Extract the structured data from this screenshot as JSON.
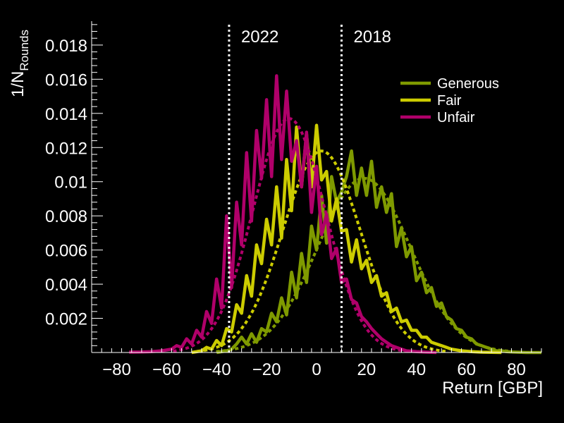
{
  "chart_data": {
    "type": "line",
    "title": "",
    "xlabel": "Return [GBP]",
    "ylabel": {
      "main": "1/N",
      "sub": "Rounds"
    },
    "xlim": [
      -90,
      90
    ],
    "ylim": [
      0,
      0.0194
    ],
    "x_ticks": [
      -80,
      -60,
      -40,
      -20,
      0,
      20,
      40,
      60,
      80
    ],
    "x_tick_labels": [
      "−80",
      "−60",
      "−40",
      "−20",
      "0",
      "20",
      "40",
      "60",
      "80"
    ],
    "y_ticks": [
      0.002,
      0.004,
      0.006,
      0.008,
      0.01,
      0.012,
      0.014,
      0.016,
      0.018
    ],
    "y_tick_labels": [
      "0.002",
      "0.004",
      "0.006",
      "0.008",
      "0.01",
      "0.012",
      "0.014",
      "0.016",
      "0.018"
    ],
    "grid": false,
    "legend_position": "top-right",
    "vlines": [
      {
        "x": -35,
        "label": "2022",
        "label_side": "right",
        "style": "dotted",
        "color": "#ffffff"
      },
      {
        "x": 10,
        "label": "2018",
        "label_side": "right",
        "style": "dotted",
        "color": "#ffffff"
      }
    ],
    "series": [
      {
        "name": "Generous",
        "color": "#7f9a00",
        "x": [
          -40,
          -36,
          -34,
          -32,
          -30,
          -28,
          -26,
          -24,
          -22,
          -20,
          -18,
          -16,
          -14,
          -12,
          -10,
          -8,
          -6,
          -4,
          -2,
          0,
          2,
          4,
          6,
          8,
          10,
          12,
          14,
          16,
          18,
          20,
          22,
          24,
          26,
          28,
          30,
          32,
          34,
          36,
          38,
          40,
          42,
          44,
          46,
          48,
          50,
          52,
          54,
          56,
          58,
          60,
          62,
          64,
          66,
          68,
          70,
          72,
          74,
          76,
          78,
          80,
          82,
          84,
          86,
          88,
          90
        ],
        "y": [
          0,
          0.0001,
          0.0002,
          0.0005,
          0.0009,
          0.0005,
          0.0011,
          0.0006,
          0.0014,
          0.0012,
          0.0023,
          0.0018,
          0.0032,
          0.0022,
          0.0047,
          0.0032,
          0.0058,
          0.0041,
          0.0074,
          0.006,
          0.0092,
          0.0064,
          0.0103,
          0.0088,
          0.0094,
          0.0103,
          0.0118,
          0.0092,
          0.0108,
          0.0092,
          0.0112,
          0.0085,
          0.0097,
          0.0082,
          0.0093,
          0.0062,
          0.0073,
          0.0056,
          0.0062,
          0.0042,
          0.0047,
          0.0035,
          0.0038,
          0.0027,
          0.0029,
          0.0021,
          0.0019,
          0.0014,
          0.0013,
          0.0009,
          0.0008,
          0.0005,
          0.0004,
          0.0003,
          0.0002,
          0.0001,
          0.0001,
          5e-05,
          3e-05,
          2e-05,
          1e-05,
          0,
          0,
          0,
          0
        ],
        "fit": {
          "mean": 19,
          "sigma": 18.5,
          "peak": 0.0102
        }
      },
      {
        "name": "Fair",
        "color": "#cccc00",
        "x": [
          -50,
          -46,
          -44,
          -42,
          -40,
          -38,
          -36,
          -34,
          -32,
          -30,
          -28,
          -26,
          -24,
          -22,
          -20,
          -18,
          -16,
          -14,
          -12,
          -10,
          -8,
          -6,
          -4,
          -2,
          0,
          2,
          4,
          6,
          8,
          10,
          12,
          14,
          16,
          18,
          20,
          22,
          24,
          26,
          28,
          30,
          32,
          34,
          36,
          38,
          40,
          42,
          44,
          46,
          48,
          50,
          54,
          58,
          62,
          66,
          70,
          74
        ],
        "y": [
          0,
          0.0001,
          0.0003,
          0.0002,
          0.0007,
          0.0004,
          0.0014,
          0.0012,
          0.0028,
          0.0023,
          0.0045,
          0.0033,
          0.0063,
          0.0052,
          0.0078,
          0.0063,
          0.0097,
          0.0067,
          0.0113,
          0.0083,
          0.0132,
          0.0097,
          0.0128,
          0.0097,
          0.0133,
          0.0101,
          0.0106,
          0.0077,
          0.009,
          0.0071,
          0.0072,
          0.0053,
          0.0066,
          0.0049,
          0.0054,
          0.0041,
          0.0045,
          0.0033,
          0.0035,
          0.0024,
          0.0026,
          0.0018,
          0.0019,
          0.0013,
          0.0013,
          0.0009,
          0.0009,
          0.0006,
          0.0005,
          0.0004,
          0.0002,
          0.0001,
          5e-05,
          2e-05,
          1e-05,
          0
        ],
        "fit": {
          "mean": 2,
          "sigma": 15.5,
          "peak": 0.0118
        }
      },
      {
        "name": "Unfair",
        "color": "#b0006a",
        "x": [
          -75,
          -70,
          -66,
          -62,
          -58,
          -56,
          -54,
          -52,
          -50,
          -48,
          -46,
          -44,
          -42,
          -40,
          -38,
          -36,
          -34,
          -32,
          -30,
          -28,
          -26,
          -24,
          -22,
          -20,
          -18,
          -16,
          -14,
          -12,
          -10,
          -8,
          -6,
          -4,
          -2,
          0,
          2,
          4,
          6,
          8,
          10,
          12,
          14,
          16,
          18,
          20,
          22,
          24,
          26,
          28,
          30,
          32,
          34,
          36,
          40,
          44,
          48
        ],
        "y": [
          2e-05,
          3e-05,
          5e-05,
          0.0001,
          0.0002,
          0.0004,
          0.0003,
          0.0008,
          0.0005,
          0.0013,
          0.0009,
          0.0024,
          0.0017,
          0.0043,
          0.0026,
          0.008,
          0.0038,
          0.0088,
          0.0063,
          0.0117,
          0.0077,
          0.013,
          0.0102,
          0.0148,
          0.0103,
          0.0162,
          0.0113,
          0.0153,
          0.0112,
          0.0124,
          0.0097,
          0.0129,
          0.0082,
          0.0109,
          0.0069,
          0.0081,
          0.0055,
          0.0061,
          0.0041,
          0.0043,
          0.0031,
          0.0029,
          0.0021,
          0.0018,
          0.0014,
          0.0011,
          0.0008,
          0.0006,
          0.0004,
          0.0003,
          0.0002,
          0.0001,
          5e-05,
          2e-05,
          0
        ],
        "fit": {
          "mean": -11,
          "sigma": 14.5,
          "peak": 0.0137
        }
      }
    ]
  }
}
